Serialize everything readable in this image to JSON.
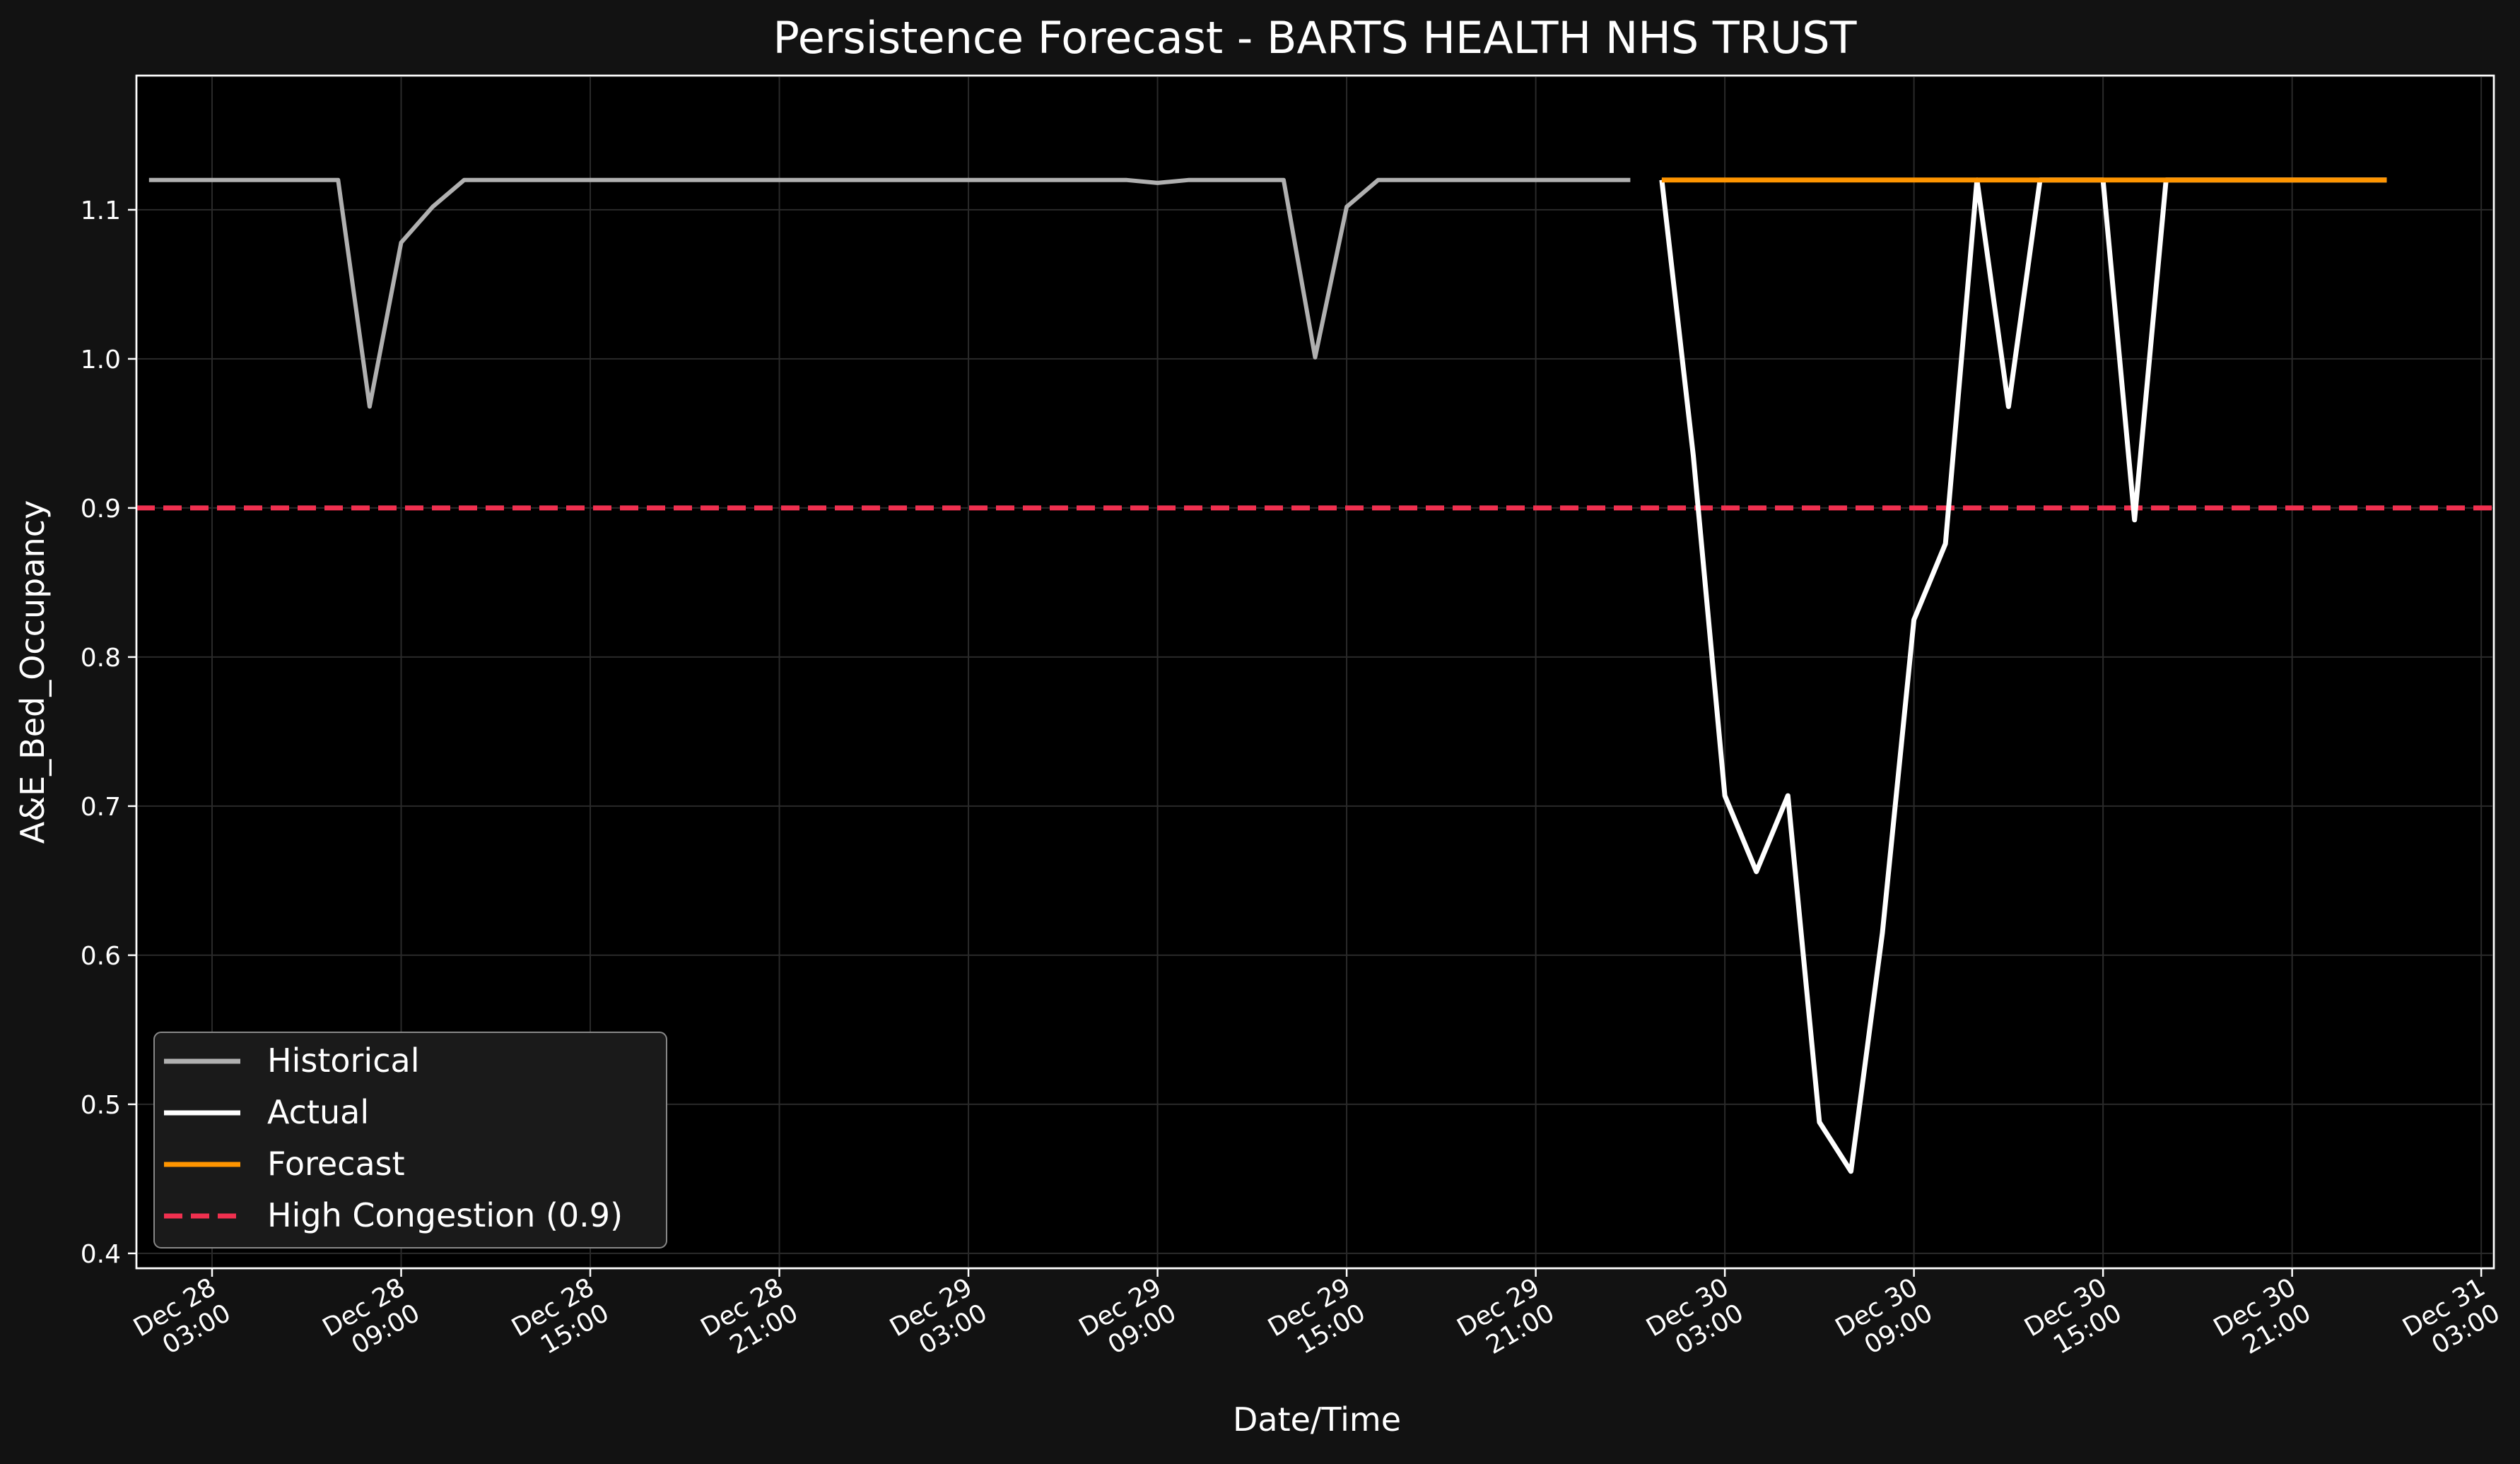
{
  "chart_data": {
    "type": "line",
    "title": "Persistence Forecast - BARTS HEALTH NHS TRUST",
    "xlabel": "Date/Time",
    "ylabel": "A&E_Bed_Occupancy",
    "ylim": [
      0.39,
      1.19
    ],
    "xlim": [
      "2023-12-28T00:36",
      "2023-12-31T03:24"
    ],
    "grid": true,
    "legend_position": "lower-left",
    "y_ticks": [
      {
        "value": 0.4,
        "label": "0.4"
      },
      {
        "value": 0.5,
        "label": "0.5"
      },
      {
        "value": 0.6,
        "label": "0.6"
      },
      {
        "value": 0.7,
        "label": "0.7"
      },
      {
        "value": 0.8,
        "label": "0.8"
      },
      {
        "value": 0.9,
        "label": "0.9"
      },
      {
        "value": 1.0,
        "label": "1.0"
      },
      {
        "value": 1.1,
        "label": "1.1"
      }
    ],
    "x_ticks": [
      {
        "value": "2023-12-28T03:00",
        "line1": "Dec 28",
        "line2": "03:00"
      },
      {
        "value": "2023-12-28T09:00",
        "line1": "Dec 28",
        "line2": "09:00"
      },
      {
        "value": "2023-12-28T15:00",
        "line1": "Dec 28",
        "line2": "15:00"
      },
      {
        "value": "2023-12-28T21:00",
        "line1": "Dec 28",
        "line2": "21:00"
      },
      {
        "value": "2023-12-29T03:00",
        "line1": "Dec 29",
        "line2": "03:00"
      },
      {
        "value": "2023-12-29T09:00",
        "line1": "Dec 29",
        "line2": "09:00"
      },
      {
        "value": "2023-12-29T15:00",
        "line1": "Dec 29",
        "line2": "15:00"
      },
      {
        "value": "2023-12-29T21:00",
        "line1": "Dec 29",
        "line2": "21:00"
      },
      {
        "value": "2023-12-30T03:00",
        "line1": "Dec 30",
        "line2": "03:00"
      },
      {
        "value": "2023-12-30T09:00",
        "line1": "Dec 30",
        "line2": "09:00"
      },
      {
        "value": "2023-12-30T15:00",
        "line1": "Dec 30",
        "line2": "15:00"
      },
      {
        "value": "2023-12-30T21:00",
        "line1": "Dec 30",
        "line2": "21:00"
      },
      {
        "value": "2023-12-31T03:00",
        "line1": "Dec 31",
        "line2": "03:00"
      }
    ],
    "series": [
      {
        "name": "Historical",
        "color": "#b0b0b0",
        "points": [
          [
            "2023-12-28T01:00",
            1.12
          ],
          [
            "2023-12-28T02:00",
            1.12
          ],
          [
            "2023-12-28T03:00",
            1.12
          ],
          [
            "2023-12-28T04:00",
            1.12
          ],
          [
            "2023-12-28T05:00",
            1.12
          ],
          [
            "2023-12-28T06:00",
            1.12
          ],
          [
            "2023-12-28T07:00",
            1.12
          ],
          [
            "2023-12-28T08:00",
            0.968
          ],
          [
            "2023-12-28T09:00",
            1.078
          ],
          [
            "2023-12-28T10:00",
            1.102
          ],
          [
            "2023-12-28T11:00",
            1.12
          ],
          [
            "2023-12-28T12:00",
            1.12
          ],
          [
            "2023-12-28T13:00",
            1.12
          ],
          [
            "2023-12-28T14:00",
            1.12
          ],
          [
            "2023-12-28T15:00",
            1.12
          ],
          [
            "2023-12-28T16:00",
            1.12
          ],
          [
            "2023-12-28T17:00",
            1.12
          ],
          [
            "2023-12-28T18:00",
            1.12
          ],
          [
            "2023-12-28T19:00",
            1.12
          ],
          [
            "2023-12-28T20:00",
            1.12
          ],
          [
            "2023-12-28T21:00",
            1.12
          ],
          [
            "2023-12-28T22:00",
            1.12
          ],
          [
            "2023-12-28T23:00",
            1.12
          ],
          [
            "2023-12-29T00:00",
            1.12
          ],
          [
            "2023-12-29T01:00",
            1.12
          ],
          [
            "2023-12-29T02:00",
            1.12
          ],
          [
            "2023-12-29T03:00",
            1.12
          ],
          [
            "2023-12-29T04:00",
            1.12
          ],
          [
            "2023-12-29T05:00",
            1.12
          ],
          [
            "2023-12-29T06:00",
            1.12
          ],
          [
            "2023-12-29T07:00",
            1.12
          ],
          [
            "2023-12-29T08:00",
            1.12
          ],
          [
            "2023-12-29T09:00",
            1.118
          ],
          [
            "2023-12-29T10:00",
            1.12
          ],
          [
            "2023-12-29T11:00",
            1.12
          ],
          [
            "2023-12-29T12:00",
            1.12
          ],
          [
            "2023-12-29T13:00",
            1.12
          ],
          [
            "2023-12-29T14:00",
            1.001
          ],
          [
            "2023-12-29T15:00",
            1.102
          ],
          [
            "2023-12-29T16:00",
            1.12
          ],
          [
            "2023-12-29T17:00",
            1.12
          ],
          [
            "2023-12-29T18:00",
            1.12
          ],
          [
            "2023-12-29T19:00",
            1.12
          ],
          [
            "2023-12-29T20:00",
            1.12
          ],
          [
            "2023-12-29T21:00",
            1.12
          ],
          [
            "2023-12-29T22:00",
            1.12
          ],
          [
            "2023-12-29T23:00",
            1.12
          ],
          [
            "2023-12-30T00:00",
            1.12
          ]
        ]
      },
      {
        "name": "Actual",
        "color": "#ffffff",
        "points": [
          [
            "2023-12-30T01:00",
            1.12
          ],
          [
            "2023-12-30T02:00",
            0.935
          ],
          [
            "2023-12-30T03:00",
            0.707
          ],
          [
            "2023-12-30T04:00",
            0.656
          ],
          [
            "2023-12-30T05:00",
            0.707
          ],
          [
            "2023-12-30T06:00",
            0.488
          ],
          [
            "2023-12-30T07:00",
            0.455
          ],
          [
            "2023-12-30T08:00",
            0.615
          ],
          [
            "2023-12-30T09:00",
            0.825
          ],
          [
            "2023-12-30T10:00",
            0.876
          ],
          [
            "2023-12-30T11:00",
            1.12
          ],
          [
            "2023-12-30T12:00",
            0.968
          ],
          [
            "2023-12-30T13:00",
            1.12
          ],
          [
            "2023-12-30T14:00",
            1.12
          ],
          [
            "2023-12-30T15:00",
            1.12
          ],
          [
            "2023-12-30T16:00",
            0.892
          ],
          [
            "2023-12-30T17:00",
            1.12
          ],
          [
            "2023-12-30T18:00",
            1.12
          ],
          [
            "2023-12-30T19:00",
            1.12
          ],
          [
            "2023-12-30T20:00",
            1.12
          ],
          [
            "2023-12-30T21:00",
            1.12
          ],
          [
            "2023-12-30T22:00",
            1.12
          ],
          [
            "2023-12-30T23:00",
            1.12
          ],
          [
            "2023-12-31T00:00",
            1.12
          ]
        ]
      },
      {
        "name": "Forecast",
        "color": "#ff9500",
        "points": [
          [
            "2023-12-30T01:00",
            1.12
          ],
          [
            "2023-12-31T00:00",
            1.12
          ]
        ]
      }
    ],
    "reference_lines": [
      {
        "name": "High Congestion (0.9)",
        "value": 0.9,
        "color": "#f0304f",
        "style": "dashed"
      }
    ]
  }
}
